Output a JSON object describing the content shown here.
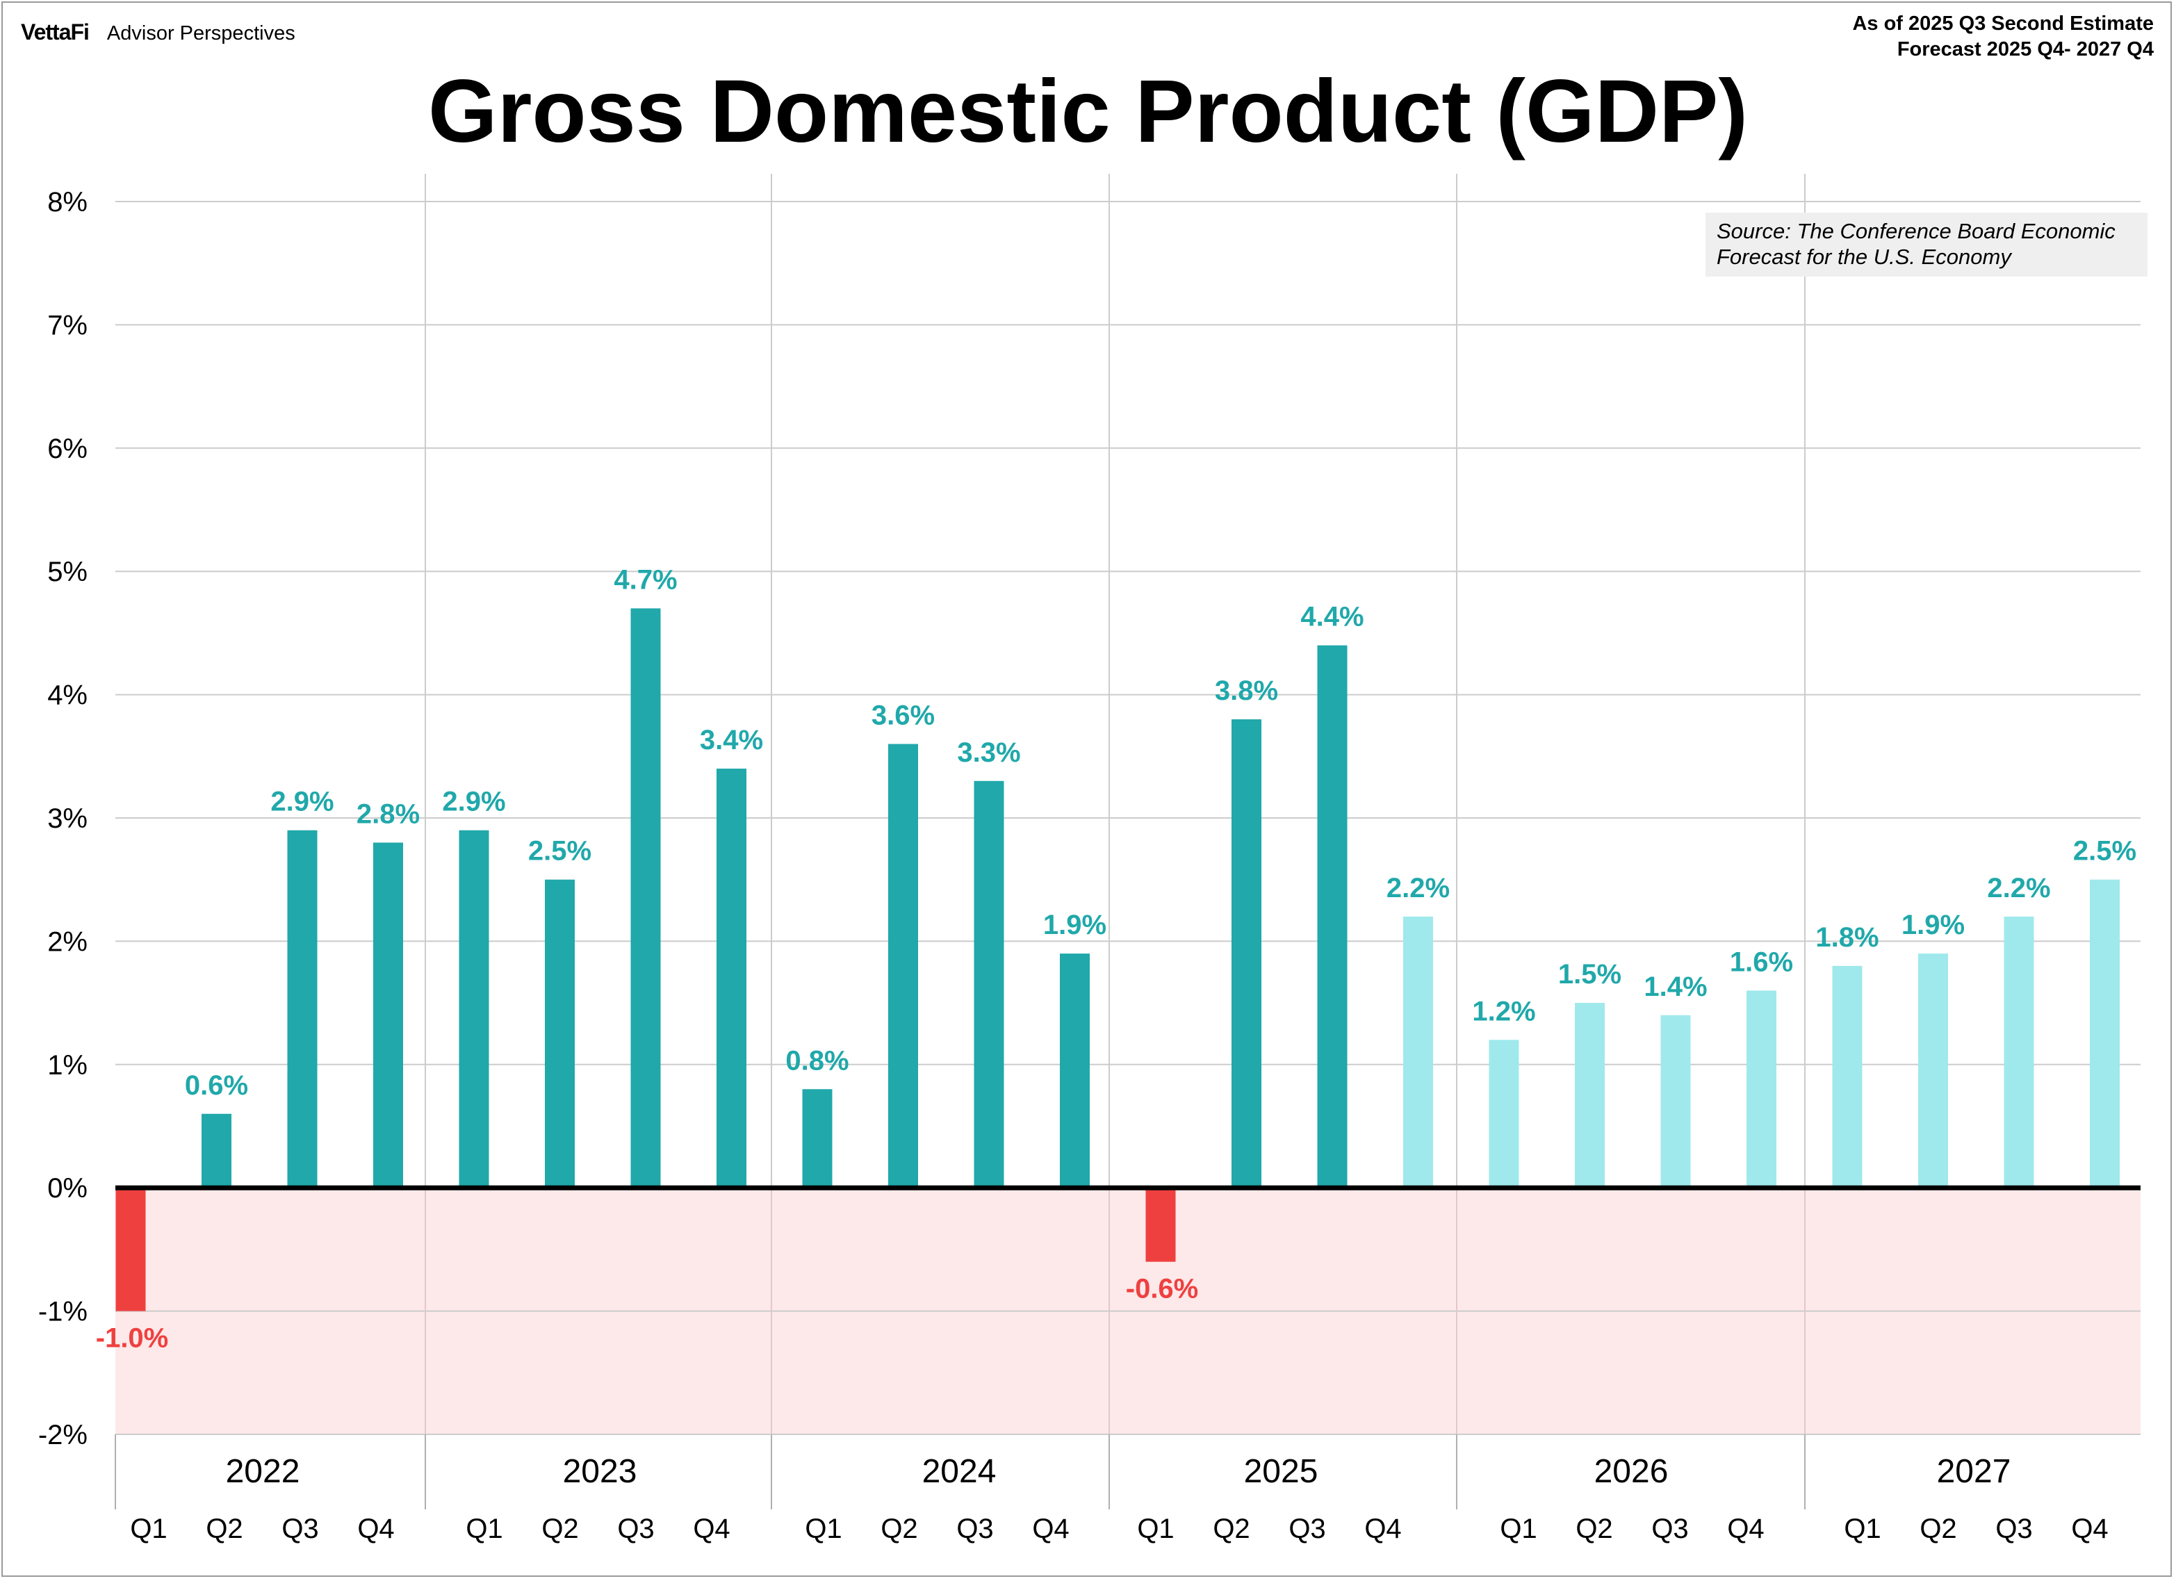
{
  "header": {
    "brand_logo": "VettaFi",
    "brand_sub": "Advisor Perspectives",
    "as_of_line1": "As of 2025 Q3 Second Estimate",
    "as_of_line2": "Forecast 2025 Q4- 2027 Q4",
    "title": "Gross Domestic Product (GDP)"
  },
  "source_note": "Source: The Conference Board Economic Forecast for the U.S. Economy",
  "colors": {
    "actual": "#20a8aa",
    "forecast": "#9fe9ec",
    "negative": "#ef4040",
    "negative_band": "#fde9e9",
    "grid": "#cccccc"
  },
  "chart_data": {
    "type": "bar",
    "title": "Gross Domestic Product (GDP)",
    "ylim": [
      -2,
      8
    ],
    "yticks": [
      "8%",
      "7%",
      "6%",
      "5%",
      "4%",
      "3%",
      "2%",
      "1%",
      "0%",
      "-1%",
      "-2%"
    ],
    "grid": true,
    "years": [
      "2022",
      "2023",
      "2024",
      "2025",
      "2026",
      "2027"
    ],
    "quarters": [
      "Q1",
      "Q2",
      "Q3",
      "Q4"
    ],
    "values": [
      -1.0,
      0.6,
      2.9,
      2.8,
      2.9,
      2.5,
      4.7,
      3.4,
      0.8,
      3.6,
      3.3,
      1.9,
      -0.6,
      3.8,
      4.4,
      2.2,
      1.2,
      1.5,
      1.4,
      1.6,
      1.8,
      1.9,
      2.2,
      2.5
    ],
    "labels": [
      "-1.0%",
      "0.6%",
      "2.9%",
      "2.8%",
      "2.9%",
      "2.5%",
      "4.7%",
      "3.4%",
      "0.8%",
      "3.6%",
      "3.3%",
      "1.9%",
      "-0.6%",
      "3.8%",
      "4.4%",
      "2.2%",
      "1.2%",
      "1.5%",
      "1.4%",
      "1.6%",
      "1.8%",
      "1.9%",
      "2.2%",
      "2.5%"
    ],
    "forecast_from_index": 15
  }
}
